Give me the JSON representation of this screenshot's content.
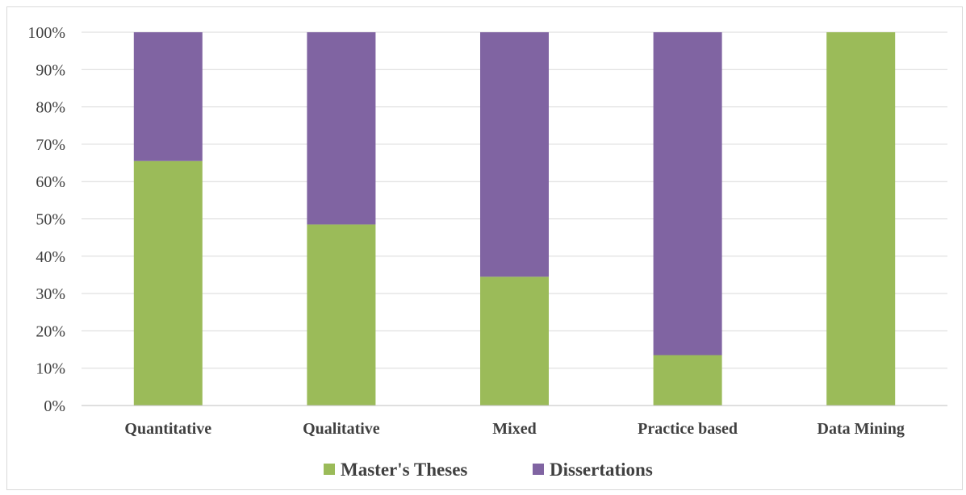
{
  "chart_data": {
    "type": "bar",
    "stacked": true,
    "categories": [
      "Quantitative",
      "Qualitative",
      "Mixed",
      "Practice based",
      "Data Mining"
    ],
    "series": [
      {
        "name": "Master's Theses",
        "values": [
          65.5,
          48.5,
          34.5,
          13.5,
          100
        ],
        "color": "#9bbb59"
      },
      {
        "name": "Dissertations",
        "values": [
          34.5,
          51.5,
          65.5,
          86.5,
          0
        ],
        "color": "#8064a2"
      }
    ],
    "yticks": [
      "0%",
      "10%",
      "20%",
      "30%",
      "40%",
      "50%",
      "60%",
      "70%",
      "80%",
      "90%",
      "100%"
    ],
    "ylim": [
      0,
      100
    ],
    "title": "",
    "xlabel": "",
    "ylabel": "",
    "grid": true,
    "legend_position": "bottom"
  }
}
